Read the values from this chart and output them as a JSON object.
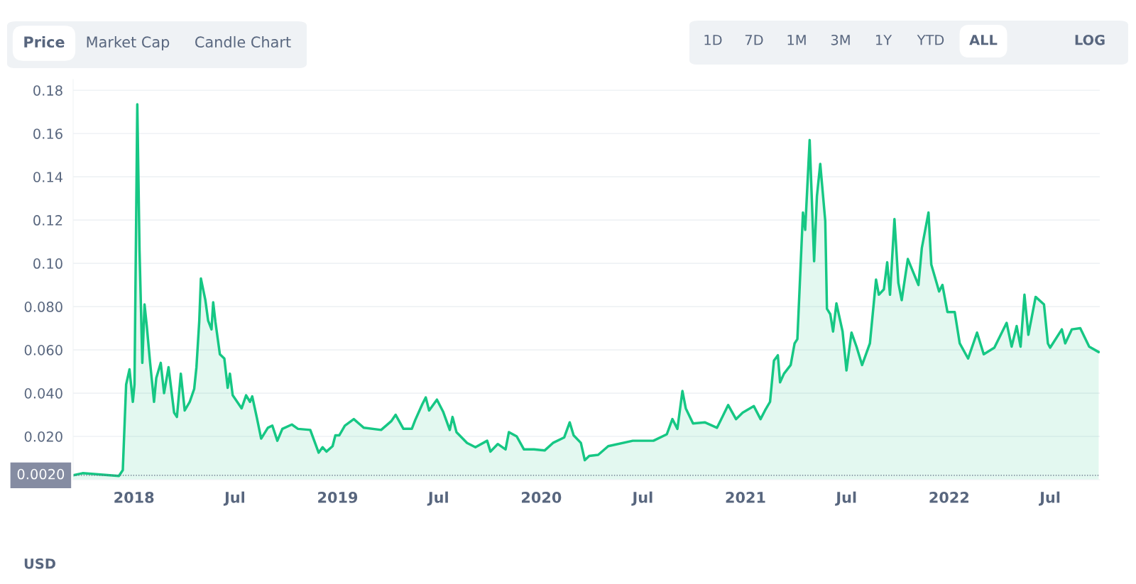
{
  "chart_data": {
    "type": "area",
    "x": [
      "2017-09-14",
      "2017-10-01",
      "2017-12-05",
      "2017-12-12",
      "2017-12-18",
      "2017-12-24",
      "2017-12-30",
      "2018-01-02",
      "2018-01-07",
      "2018-01-11",
      "2018-01-16",
      "2018-01-20",
      "2018-01-24",
      "2018-01-30",
      "2018-02-06",
      "2018-02-10",
      "2018-02-18",
      "2018-02-24",
      "2018-03-04",
      "2018-03-14",
      "2018-03-19",
      "2018-03-26",
      "2018-04-02",
      "2018-04-11",
      "2018-04-19",
      "2018-04-23",
      "2018-04-28",
      "2018-05-01",
      "2018-05-09",
      "2018-05-14",
      "2018-05-20",
      "2018-05-23",
      "2018-05-27",
      "2018-06-04",
      "2018-06-12",
      "2018-06-18",
      "2018-06-22",
      "2018-06-27",
      "2018-07-13",
      "2018-07-21",
      "2018-07-28",
      "2018-08-01",
      "2018-08-09",
      "2018-08-17",
      "2018-08-29",
      "2018-09-06",
      "2018-09-15",
      "2018-09-24",
      "2018-10-11",
      "2018-10-22",
      "2018-11-13",
      "2018-11-28",
      "2018-12-05",
      "2018-12-12",
      "2018-12-23",
      "2018-12-28",
      "2019-01-04",
      "2019-01-14",
      "2019-01-30",
      "2019-02-17",
      "2019-03-20",
      "2019-04-07",
      "2019-04-15",
      "2019-04-29",
      "2019-05-14",
      "2019-05-20",
      "2019-06-02",
      "2019-06-08",
      "2019-06-14",
      "2019-06-28",
      "2019-07-09",
      "2019-07-21",
      "2019-07-26",
      "2019-08-02",
      "2019-08-21",
      "2019-09-05",
      "2019-09-26",
      "2019-10-02",
      "2019-10-15",
      "2019-10-29",
      "2019-11-04",
      "2019-11-18",
      "2019-12-01",
      "2019-12-19",
      "2020-01-07",
      "2020-01-22",
      "2020-02-11",
      "2020-02-21",
      "2020-02-28",
      "2020-03-12",
      "2020-03-19",
      "2020-03-27",
      "2020-04-12",
      "2020-04-30",
      "2020-06-13",
      "2020-07-20",
      "2020-08-13",
      "2020-08-23",
      "2020-09-01",
      "2020-09-10",
      "2020-09-16",
      "2020-09-29",
      "2020-10-20",
      "2020-11-11",
      "2020-12-01",
      "2020-12-15",
      "2020-12-27",
      "2021-01-16",
      "2021-01-28",
      "2021-02-05",
      "2021-02-14",
      "2021-02-21",
      "2021-02-28",
      "2021-03-04",
      "2021-03-11",
      "2021-03-23",
      "2021-03-30",
      "2021-04-04",
      "2021-04-14",
      "2021-04-18",
      "2021-04-26",
      "2021-05-04",
      "2021-05-09",
      "2021-05-15",
      "2021-05-24",
      "2021-05-27",
      "2021-06-02",
      "2021-06-07",
      "2021-06-13",
      "2021-06-24",
      "2021-07-01",
      "2021-07-10",
      "2021-07-19",
      "2021-07-29",
      "2021-08-12",
      "2021-08-23",
      "2021-08-28",
      "2021-09-06",
      "2021-09-12",
      "2021-09-17",
      "2021-09-25",
      "2021-10-02",
      "2021-10-08",
      "2021-10-19",
      "2021-11-07",
      "2021-11-13",
      "2021-11-25",
      "2021-11-30",
      "2021-12-14",
      "2021-12-20",
      "2021-12-29",
      "2022-01-11",
      "2022-01-20",
      "2022-02-04",
      "2022-02-20",
      "2022-03-04",
      "2022-03-23",
      "2022-04-14",
      "2022-04-23",
      "2022-05-02",
      "2022-05-09",
      "2022-05-16",
      "2022-05-23",
      "2022-06-05",
      "2022-06-20",
      "2022-06-27",
      "2022-07-01",
      "2022-07-22",
      "2022-07-28",
      "2022-08-09",
      "2022-08-24",
      "2022-09-09",
      "2022-09-26"
    ],
    "series": [
      {
        "color": "#16c784",
        "values": [
          0.002,
          0.003,
          0.0017,
          0.0044,
          0.044,
          0.051,
          0.036,
          0.044,
          0.1735,
          0.106,
          0.054,
          0.081,
          0.071,
          0.054,
          0.036,
          0.047,
          0.054,
          0.04,
          0.052,
          0.031,
          0.029,
          0.049,
          0.032,
          0.036,
          0.042,
          0.052,
          0.073,
          0.093,
          0.083,
          0.0735,
          0.0695,
          0.082,
          0.073,
          0.058,
          0.056,
          0.0425,
          0.049,
          0.039,
          0.033,
          0.039,
          0.036,
          0.0385,
          0.029,
          0.019,
          0.024,
          0.025,
          0.018,
          0.0235,
          0.0255,
          0.0235,
          0.023,
          0.0125,
          0.015,
          0.013,
          0.0155,
          0.0205,
          0.0205,
          0.025,
          0.028,
          0.024,
          0.023,
          0.027,
          0.03,
          0.0235,
          0.0235,
          0.0275,
          0.035,
          0.038,
          0.032,
          0.037,
          0.0315,
          0.023,
          0.029,
          0.022,
          0.017,
          0.015,
          0.018,
          0.013,
          0.0165,
          0.014,
          0.022,
          0.02,
          0.014,
          0.014,
          0.0135,
          0.017,
          0.0195,
          0.0265,
          0.0205,
          0.017,
          0.009,
          0.011,
          0.0115,
          0.0155,
          0.018,
          0.018,
          0.021,
          0.028,
          0.0235,
          0.041,
          0.033,
          0.026,
          0.0265,
          0.024,
          0.0345,
          0.028,
          0.031,
          0.034,
          0.028,
          0.032,
          0.036,
          0.055,
          0.0575,
          0.045,
          0.049,
          0.053,
          0.063,
          0.065,
          0.1235,
          0.1155,
          0.157,
          0.101,
          0.131,
          0.146,
          0.1195,
          0.079,
          0.0765,
          0.0685,
          0.0815,
          0.0685,
          0.0505,
          0.068,
          0.0615,
          0.053,
          0.063,
          0.0925,
          0.0855,
          0.088,
          0.1005,
          0.0855,
          0.1205,
          0.091,
          0.083,
          0.102,
          0.09,
          0.107,
          0.1235,
          0.0995,
          0.087,
          0.09,
          0.0775,
          0.0775,
          0.063,
          0.056,
          0.068,
          0.058,
          0.061,
          0.0725,
          0.0615,
          0.071,
          0.0615,
          0.0855,
          0.067,
          0.0845,
          0.081,
          0.063,
          0.061,
          0.0695,
          0.063,
          0.0695,
          0.07,
          0.0615,
          0.059
        ]
      }
    ],
    "xlim": [
      "2017-09-14",
      "2022-09-28"
    ],
    "xticks": [
      {
        "value": "2018-01-01",
        "label": "2018"
      },
      {
        "value": "2018-07-01",
        "label": "Jul"
      },
      {
        "value": "2019-01-01",
        "label": "2019"
      },
      {
        "value": "2019-07-01",
        "label": "Jul"
      },
      {
        "value": "2020-01-01",
        "label": "2020"
      },
      {
        "value": "2020-07-01",
        "label": "Jul"
      },
      {
        "value": "2021-01-01",
        "label": "2021"
      },
      {
        "value": "2021-07-01",
        "label": "Jul"
      },
      {
        "value": "2022-01-01",
        "label": "2022"
      },
      {
        "value": "2022-07-01",
        "label": "Jul"
      }
    ],
    "ylim": [
      0,
      0.185
    ],
    "yticks": [
      {
        "value": 0.02,
        "label": "0.020"
      },
      {
        "value": 0.04,
        "label": "0.040"
      },
      {
        "value": 0.06,
        "label": "0.060"
      },
      {
        "value": 0.08,
        "label": "0.080"
      },
      {
        "value": 0.1,
        "label": "0.10"
      },
      {
        "value": 0.12,
        "label": "0.12"
      },
      {
        "value": 0.14,
        "label": "0.14"
      },
      {
        "value": 0.16,
        "label": "0.16"
      },
      {
        "value": 0.18,
        "label": "0.18"
      }
    ],
    "grid": "y",
    "ref_lines": [
      {
        "axis": "y",
        "value": 0.002,
        "label": "0.0020",
        "color": "#58667e",
        "line_style": "dotted"
      }
    ],
    "annotations": [
      "Price",
      "Market Cap",
      "Candle Chart",
      "1D",
      "7D",
      "1M",
      "3M",
      "1Y",
      "YTD",
      "ALL",
      "LOG",
      "USD"
    ]
  }
}
